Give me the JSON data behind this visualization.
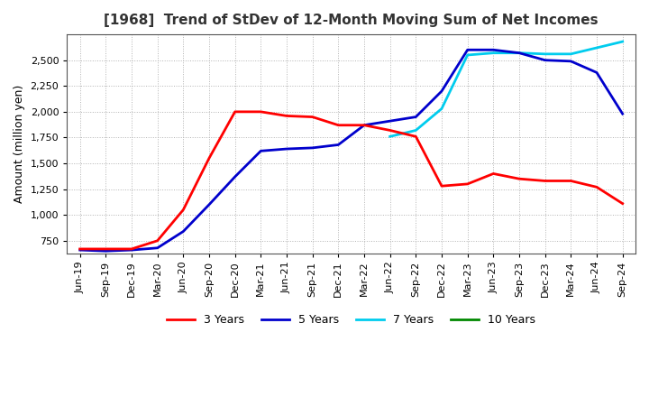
{
  "title": "[1968]  Trend of StDev of 12-Month Moving Sum of Net Incomes",
  "ylabel": "Amount (million yen)",
  "background_color": "#ffffff",
  "grid_color": "#aaaaaa",
  "legend_entries": [
    "3 Years",
    "5 Years",
    "7 Years",
    "10 Years"
  ],
  "line_colors": [
    "#ff0000",
    "#0000cc",
    "#00ccee",
    "#008800"
  ],
  "x_labels": [
    "Jun-19",
    "Sep-19",
    "Dec-19",
    "Mar-20",
    "Jun-20",
    "Sep-20",
    "Dec-20",
    "Mar-21",
    "Jun-21",
    "Sep-21",
    "Dec-21",
    "Mar-22",
    "Jun-22",
    "Sep-22",
    "Dec-22",
    "Mar-23",
    "Jun-23",
    "Sep-23",
    "Dec-23",
    "Mar-24",
    "Jun-24",
    "Sep-24"
  ],
  "ylim": [
    630,
    2750
  ],
  "yticks": [
    750,
    1000,
    1250,
    1500,
    1750,
    2000,
    2250,
    2500
  ],
  "series_3y": [
    670,
    670,
    670,
    750,
    1050,
    1550,
    2000,
    2000,
    1960,
    1950,
    1870,
    1870,
    1820,
    1760,
    1280,
    1300,
    1400,
    1350,
    1330,
    1330,
    1270,
    1110
  ],
  "series_5y": [
    660,
    650,
    660,
    680,
    840,
    1100,
    1370,
    1620,
    1640,
    1650,
    1680,
    1870,
    1910,
    1950,
    2200,
    2600,
    2600,
    2570,
    2500,
    2490,
    2380,
    1980
  ],
  "series_7y": [
    null,
    null,
    null,
    null,
    null,
    null,
    null,
    null,
    null,
    null,
    null,
    null,
    1760,
    1820,
    2030,
    2550,
    2570,
    2570,
    2560,
    2560,
    2620,
    2680
  ],
  "series_10y": [
    null,
    null,
    null,
    null,
    null,
    null,
    null,
    null,
    null,
    null,
    null,
    null,
    null,
    null,
    null,
    null,
    null,
    null,
    null,
    null,
    null,
    null
  ]
}
